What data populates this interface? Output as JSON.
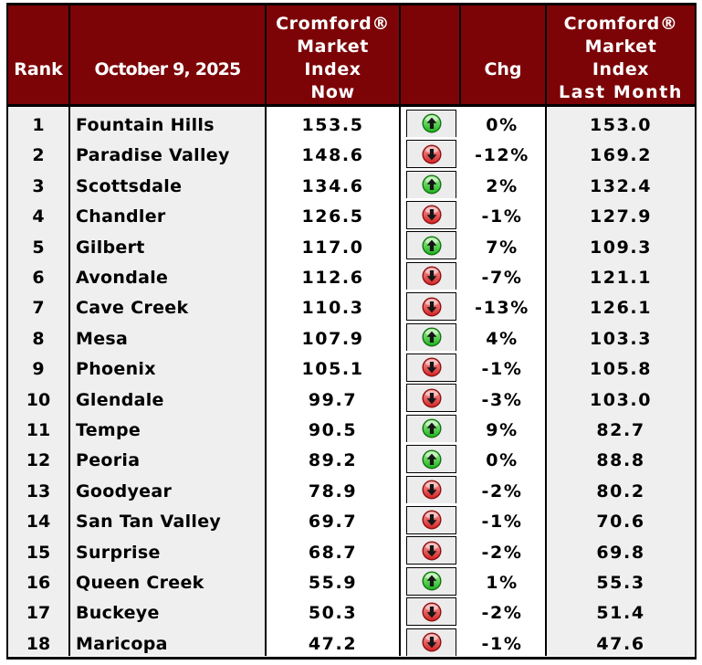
{
  "header": {
    "rank": "Rank",
    "date": "October 9, 2025",
    "cmi_now": [
      "Cromford®",
      "Market",
      "Index",
      "Now"
    ],
    "chg": "Chg",
    "cmi_last": [
      "Cromford®",
      "Market",
      "Index",
      "Last Month"
    ]
  },
  "rows": [
    {
      "rank": "1",
      "city": "Fountain Hills",
      "now": "153.5",
      "dir": "up",
      "chg": "0%",
      "last": "153.0"
    },
    {
      "rank": "2",
      "city": "Paradise Valley",
      "now": "148.6",
      "dir": "down",
      "chg": "-12%",
      "last": "169.2"
    },
    {
      "rank": "3",
      "city": "Scottsdale",
      "now": "134.6",
      "dir": "up",
      "chg": "2%",
      "last": "132.4"
    },
    {
      "rank": "4",
      "city": "Chandler",
      "now": "126.5",
      "dir": "down",
      "chg": "-1%",
      "last": "127.9"
    },
    {
      "rank": "5",
      "city": "Gilbert",
      "now": "117.0",
      "dir": "up",
      "chg": "7%",
      "last": "109.3"
    },
    {
      "rank": "6",
      "city": "Avondale",
      "now": "112.6",
      "dir": "down",
      "chg": "-7%",
      "last": "121.1"
    },
    {
      "rank": "7",
      "city": "Cave Creek",
      "now": "110.3",
      "dir": "down",
      "chg": "-13%",
      "last": "126.1"
    },
    {
      "rank": "8",
      "city": "Mesa",
      "now": "107.9",
      "dir": "up",
      "chg": "4%",
      "last": "103.3"
    },
    {
      "rank": "9",
      "city": "Phoenix",
      "now": "105.1",
      "dir": "down",
      "chg": "-1%",
      "last": "105.8"
    },
    {
      "rank": "10",
      "city": "Glendale",
      "now": "99.7",
      "dir": "down",
      "chg": "-3%",
      "last": "103.0"
    },
    {
      "rank": "11",
      "city": "Tempe",
      "now": "90.5",
      "dir": "up",
      "chg": "9%",
      "last": "82.7"
    },
    {
      "rank": "12",
      "city": "Peoria",
      "now": "89.2",
      "dir": "up",
      "chg": "0%",
      "last": "88.8"
    },
    {
      "rank": "13",
      "city": "Goodyear",
      "now": "78.9",
      "dir": "down",
      "chg": "-2%",
      "last": "80.2"
    },
    {
      "rank": "14",
      "city": "San Tan Valley",
      "now": "69.7",
      "dir": "down",
      "chg": "-1%",
      "last": "70.6"
    },
    {
      "rank": "15",
      "city": "Surprise",
      "now": "68.7",
      "dir": "down",
      "chg": "-2%",
      "last": "69.8"
    },
    {
      "rank": "16",
      "city": "Queen Creek",
      "now": "55.9",
      "dir": "up",
      "chg": "1%",
      "last": "55.3"
    },
    {
      "rank": "17",
      "city": "Buckeye",
      "now": "50.3",
      "dir": "down",
      "chg": "-2%",
      "last": "51.4"
    },
    {
      "rank": "18",
      "city": "Maricopa",
      "now": "47.2",
      "dir": "down",
      "chg": "-1%",
      "last": "47.6"
    }
  ],
  "icons": {
    "up": "green-up-arrow-icon",
    "down": "red-down-arrow-icon"
  },
  "colors": {
    "header_bg": "#7C0407",
    "header_text": "#ffffff",
    "row_gray": "#EFEFEF",
    "arrow_box_bg": "#ECECEC",
    "border": "#000000",
    "up_green": "#1CB21C",
    "down_red": "#D32222"
  }
}
